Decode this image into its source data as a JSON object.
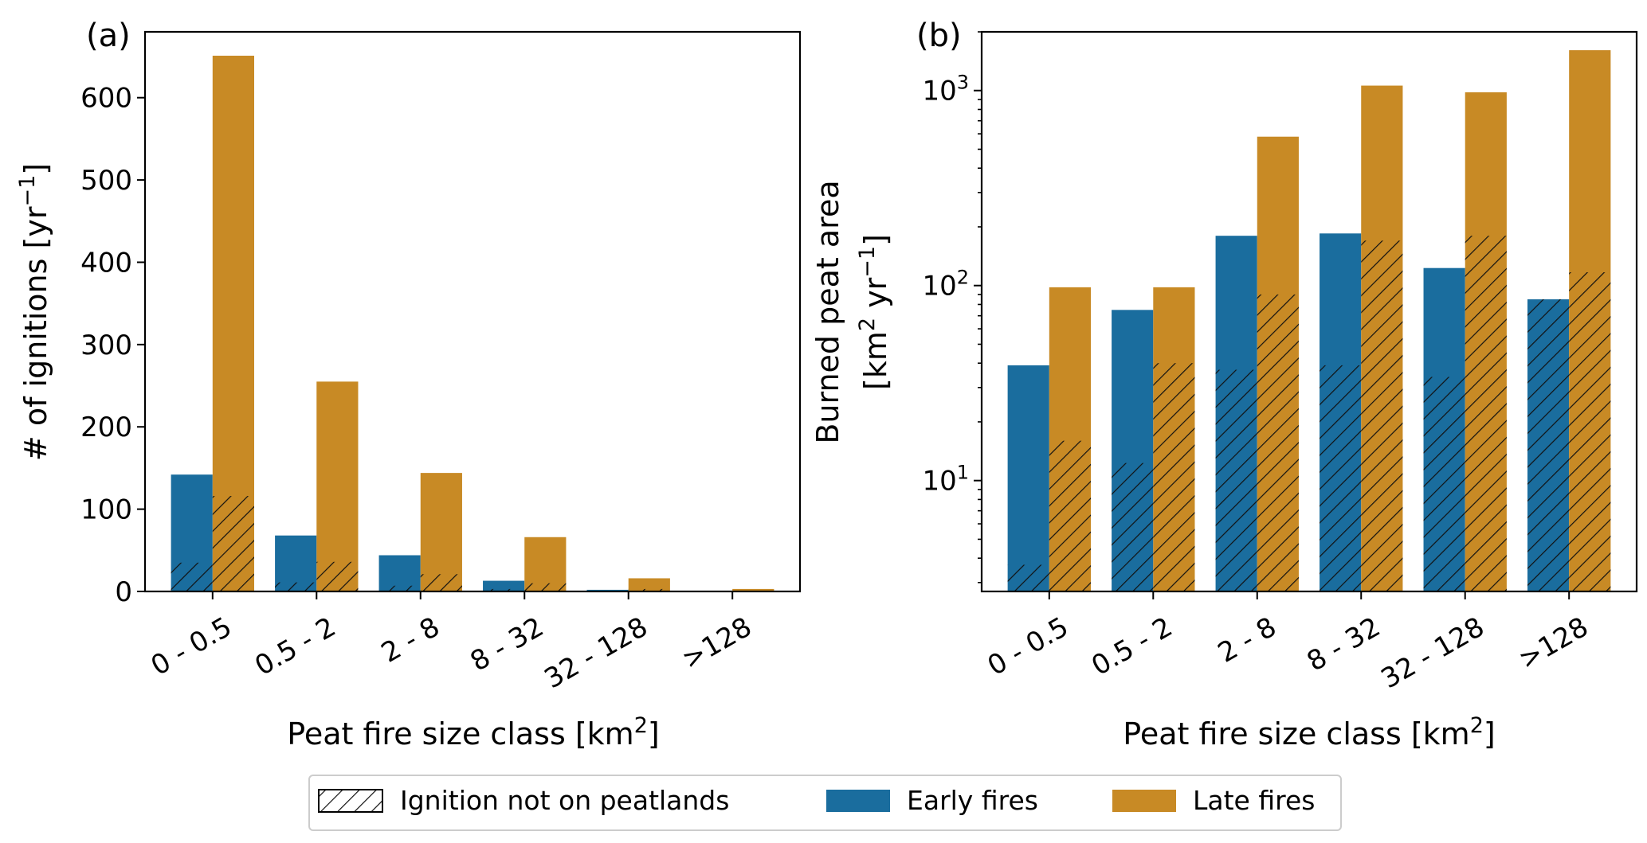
{
  "chart_data": [
    {
      "type": "bar",
      "panel_label": "(a)",
      "categories": [
        "0 - 0.5",
        "0.5 - 2",
        "2 - 8",
        "8 - 32",
        "32 - 128",
        ">128"
      ],
      "ylabel": "# of ignitions [yr",
      "ylabel_sup": "−1",
      "ylabel_end": "]",
      "xlabel": "Peat fire size class [km",
      "xlabel_sup": "2",
      "xlabel_end": "]",
      "yscale": "linear",
      "ylim": [
        0,
        680
      ],
      "yticks": [
        0,
        100,
        200,
        300,
        400,
        500,
        600
      ],
      "ytick_labels": [
        "0",
        "100",
        "200",
        "300",
        "400",
        "500",
        "600"
      ],
      "series": [
        {
          "name": "Early fires",
          "values": [
            142,
            68,
            44,
            13,
            2,
            0.5
          ],
          "hatched_values": [
            35,
            11,
            7,
            3,
            0.5,
            0
          ]
        },
        {
          "name": "Late fires",
          "values": [
            651,
            255,
            144,
            66,
            16,
            3
          ],
          "hatched_values": [
            116,
            36,
            21,
            10,
            3,
            0.5
          ]
        }
      ]
    },
    {
      "type": "bar",
      "panel_label": "(b)",
      "categories": [
        "0 - 0.5",
        "0.5 - 2",
        "2 - 8",
        "8 - 32",
        "32 - 128",
        ">128"
      ],
      "ylabel_line1": "Burned peat area",
      "ylabel_line2": "[km",
      "ylabel_line2_sup": "2",
      "ylabel_line2_mid": " yr",
      "ylabel_line2_sup2": "−1",
      "ylabel_line2_end": "]",
      "xlabel": "Peat fire size class [km",
      "xlabel_sup": "2",
      "xlabel_end": "]",
      "yscale": "log",
      "ylim": [
        2.7,
        2000
      ],
      "yticks": [
        10,
        100,
        1000
      ],
      "ytick_bases": [
        "10",
        "10",
        "10"
      ],
      "ytick_exps": [
        "1",
        "2",
        "3"
      ],
      "series": [
        {
          "name": "Early fires",
          "values": [
            39,
            75,
            180,
            185,
            123,
            85
          ],
          "hatched_values": [
            3.7,
            12.3,
            37,
            39,
            34,
            85
          ]
        },
        {
          "name": "Late fires",
          "values": [
            98,
            98,
            580,
            1060,
            980,
            1610
          ],
          "hatched_values": [
            16,
            40,
            90,
            170,
            180,
            117
          ]
        }
      ]
    }
  ],
  "legend": {
    "items": [
      {
        "label": "Ignition not on peatlands",
        "style": "hatch"
      },
      {
        "label": "Early fires",
        "style": "fill",
        "color": "#1a6d9e"
      },
      {
        "label": "Late fires",
        "style": "fill",
        "color": "#c88a25"
      }
    ]
  },
  "colors": {
    "early": "#1a6d9e",
    "late": "#c88a25"
  }
}
